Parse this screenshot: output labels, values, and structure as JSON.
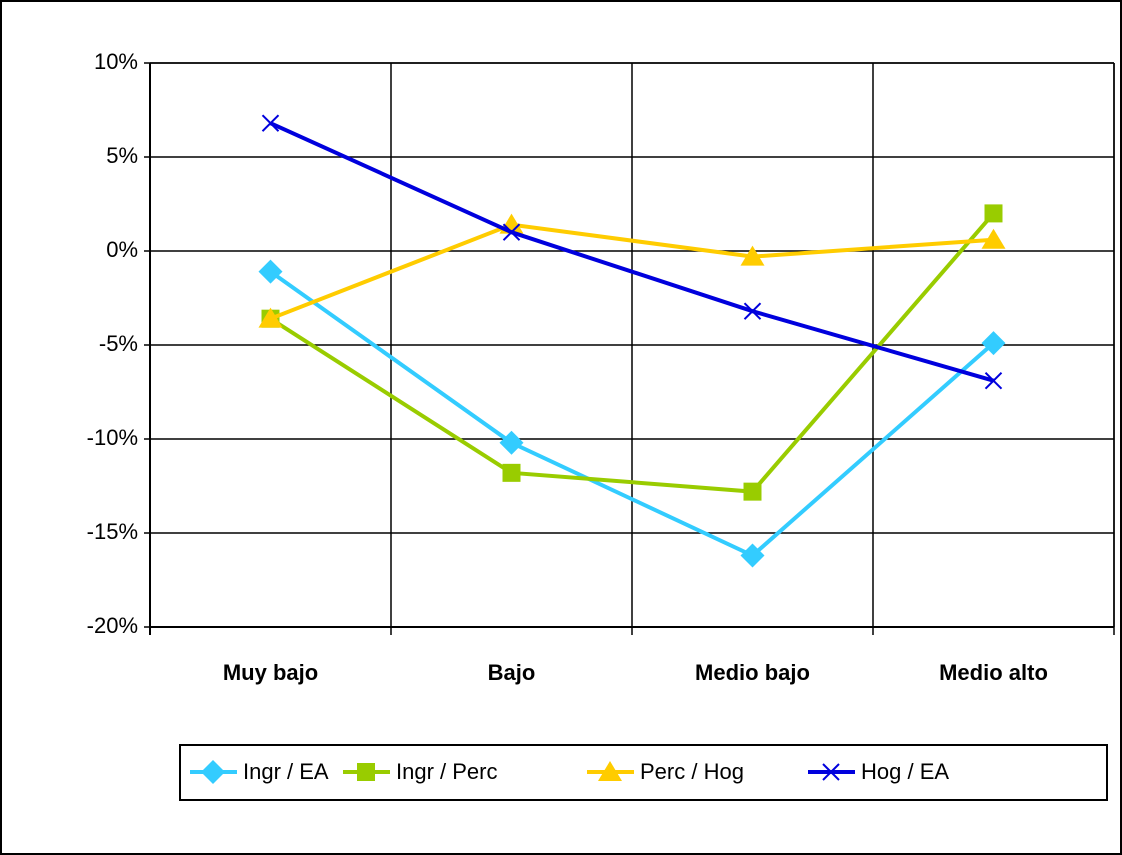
{
  "chart_data": {
    "type": "line",
    "categories": [
      "Muy bajo",
      "Bajo",
      "Medio bajo",
      "Medio alto"
    ],
    "series": [
      {
        "name": "Ingr / EA",
        "color": "#33CCFF",
        "marker": "diamond",
        "values": [
          -1.1,
          -10.2,
          -16.2,
          -4.9
        ]
      },
      {
        "name": "Ingr / Perc",
        "color": "#99CC00",
        "marker": "square",
        "values": [
          -3.6,
          -11.8,
          -12.8,
          2.0
        ]
      },
      {
        "name": "Perc / Hog",
        "color": "#FFCC00",
        "marker": "triangle",
        "values": [
          -3.6,
          1.4,
          -0.3,
          0.6
        ]
      },
      {
        "name": "Hog / EA",
        "color": "#0000DD",
        "marker": "x",
        "values": [
          6.8,
          1.0,
          -3.2,
          -6.9
        ]
      }
    ],
    "ylim": [
      -20,
      10
    ],
    "yticks": [
      {
        "value": -20,
        "label": "-20%"
      },
      {
        "value": -15,
        "label": "-15%"
      },
      {
        "value": -10,
        "label": "-10%"
      },
      {
        "value": -5,
        "label": "-5%"
      },
      {
        "value": 0,
        "label": "0%"
      },
      {
        "value": 5,
        "label": "5%"
      },
      {
        "value": 10,
        "label": "10%"
      }
    ],
    "grid": true,
    "legend": "bottom"
  }
}
